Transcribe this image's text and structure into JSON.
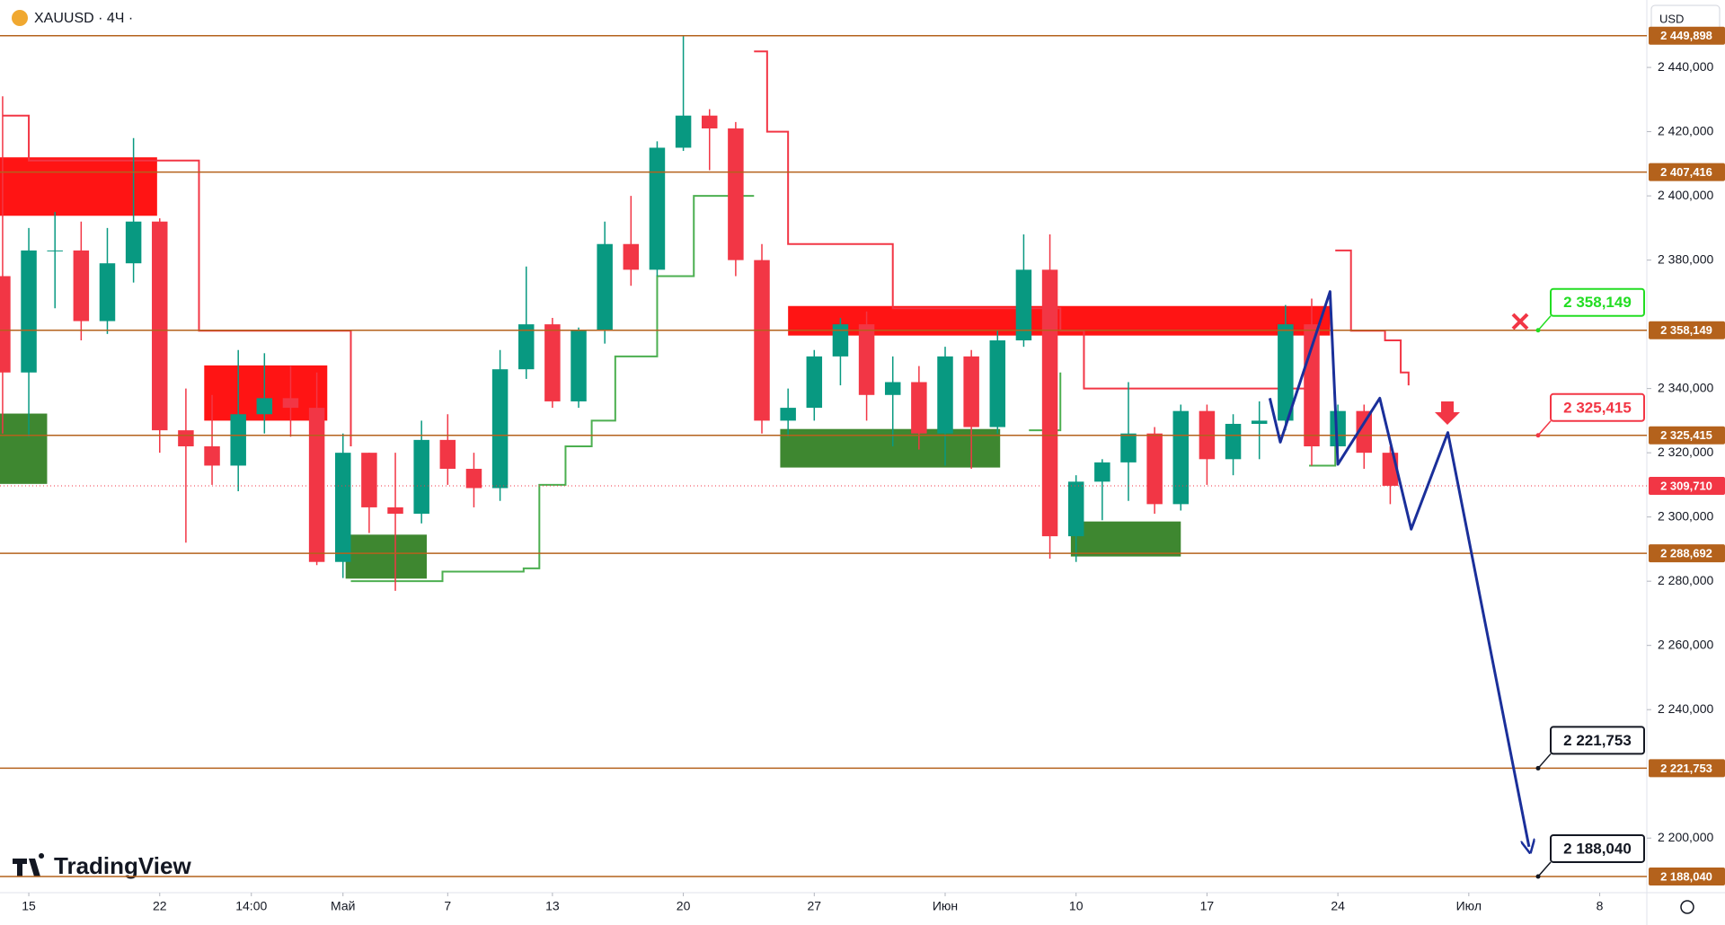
{
  "header": {
    "symbol": "XAUUSD · 4Ч ·",
    "currency": "USD",
    "brand": "TradingView"
  },
  "chart_data": {
    "type": "candlestick",
    "xlim": [
      -1.1,
      61.8
    ],
    "ylim": [
      2183,
      2461
    ],
    "xticks": [
      {
        "value": 0,
        "label": "15"
      },
      {
        "value": 5,
        "label": "22"
      },
      {
        "value": 8.5,
        "label": "14:00"
      },
      {
        "value": 12,
        "label": "Май"
      },
      {
        "value": 16,
        "label": "7"
      },
      {
        "value": 20,
        "label": "13"
      },
      {
        "value": 25,
        "label": "20"
      },
      {
        "value": 30,
        "label": "27"
      },
      {
        "value": 35,
        "label": "Июн"
      },
      {
        "value": 40,
        "label": "10"
      },
      {
        "value": 45,
        "label": "17"
      },
      {
        "value": 50,
        "label": "24"
      },
      {
        "value": 55,
        "label": "Июл"
      },
      {
        "value": 60,
        "label": "8"
      }
    ],
    "yticks": [
      {
        "value": 2200,
        "label": "2 200,000"
      },
      {
        "value": 2240,
        "label": "2 240,000"
      },
      {
        "value": 2260,
        "label": "2 260,000"
      },
      {
        "value": 2280,
        "label": "2 280,000"
      },
      {
        "value": 2300,
        "label": "2 300,000"
      },
      {
        "value": 2320,
        "label": "2 320,000"
      },
      {
        "value": 2340,
        "label": "2 340,000"
      },
      {
        "value": 2380,
        "label": "2 380,000"
      },
      {
        "value": 2400,
        "label": "2 400,000"
      },
      {
        "value": 2420,
        "label": "2 420,000"
      },
      {
        "value": 2440,
        "label": "2 440,000"
      }
    ],
    "up_color": "#089981",
    "down_color": "#f23645",
    "candles": {
      "x": [
        -1,
        0,
        1,
        2,
        3,
        4,
        5,
        6,
        7,
        8,
        9,
        10,
        11,
        12,
        13,
        14,
        15,
        16,
        17,
        18,
        19,
        20,
        21,
        22,
        23,
        24,
        25,
        26,
        27,
        28,
        29,
        30,
        31,
        32,
        33,
        34,
        35,
        36,
        37,
        38,
        39,
        40,
        41,
        42,
        43,
        44,
        45,
        46,
        47,
        48,
        49,
        50,
        51,
        52
      ],
      "open": [
        2375,
        2345,
        2383,
        2383,
        2361,
        2379,
        2392,
        2327,
        2322,
        2316,
        2332,
        2337,
        2334,
        2286,
        2320,
        2303,
        2301,
        2324,
        2315,
        2309,
        2346,
        2360,
        2336,
        2358,
        2385,
        2377,
        2415,
        2425,
        2421,
        2380,
        2330,
        2334,
        2350,
        2360,
        2338,
        2342,
        2326,
        2350,
        2328,
        2355,
        2377,
        2294,
        2311,
        2317,
        2326,
        2304,
        2333,
        2318,
        2329,
        2330,
        2360,
        2322,
        2333,
        2320
      ],
      "high": [
        2431,
        2390,
        2395,
        2392,
        2390,
        2418,
        2393,
        2340,
        2338,
        2352,
        2351,
        2347,
        2345,
        2326,
        2320,
        2320,
        2330,
        2332,
        2320,
        2352,
        2378,
        2362,
        2359,
        2392,
        2400,
        2417,
        2450,
        2427,
        2423,
        2385,
        2340,
        2352,
        2362,
        2364,
        2350,
        2347,
        2353,
        2352,
        2358,
        2388,
        2388,
        2313,
        2318,
        2342,
        2328,
        2335,
        2335,
        2332,
        2336,
        2366,
        2368,
        2335,
        2335,
        2322
      ],
      "low": [
        2326,
        2325,
        2365,
        2355,
        2357,
        2373,
        2320,
        2292,
        2310,
        2308,
        2326,
        2325,
        2285,
        2281,
        2295,
        2277,
        2298,
        2310,
        2303,
        2305,
        2343,
        2334,
        2334,
        2354,
        2372,
        2375,
        2414,
        2408,
        2375,
        2326,
        2325,
        2330,
        2341,
        2330,
        2322,
        2321,
        2316,
        2315,
        2326,
        2353,
        2287,
        2286,
        2299,
        2305,
        2301,
        2302,
        2310,
        2313,
        2318,
        2327,
        2316,
        2320,
        2315,
        2304
      ],
      "close": [
        2345,
        2383,
        2383,
        2361,
        2379,
        2392,
        2327,
        2322,
        2316,
        2332,
        2337,
        2334,
        2286,
        2320,
        2303,
        2301,
        2324,
        2315,
        2309,
        2346,
        2360,
        2336,
        2358,
        2385,
        2377,
        2415,
        2425,
        2421,
        2380,
        2330,
        2334,
        2350,
        2360,
        2338,
        2342,
        2326,
        2350,
        2328,
        2355,
        2377,
        2294,
        2311,
        2317,
        2326,
        2304,
        2333,
        2318,
        2329,
        2330,
        2360,
        2322,
        2333,
        2320,
        2309.71
      ]
    },
    "trail_lines": [
      {
        "color": "#f23645",
        "x": [
          -1,
          -0.3,
          0,
          5.4,
          6.5,
          11.4,
          12.3,
          null,
          27.7,
          28.2,
          29,
          33,
          39.4,
          40.3,
          48.9,
          null,
          49.9,
          50.5,
          51.8,
          52.4,
          52.7
        ],
        "values": [
          2425,
          2425,
          2411,
          2411,
          2358,
          2358,
          2322,
          null,
          2445,
          2420,
          2385,
          2365,
          2358,
          2340,
          2340,
          null,
          2383,
          2358,
          2355,
          2345,
          2341
        ]
      },
      {
        "color": "#4caf50",
        "x": [
          12.3,
          15.8,
          18.9,
          19.5,
          20.5,
          21.5,
          22.4,
          24,
          25.4,
          27.7,
          null,
          38.2,
          39.4,
          null,
          48.9,
          49.9
        ],
        "values": [
          2280,
          2283,
          2284,
          2310,
          2322,
          2330,
          2350,
          2375,
          2400,
          2400,
          null,
          2327,
          2345,
          null,
          2316,
          2330
        ]
      }
    ],
    "zones": [
      {
        "color": "#ff0000",
        "x": [
          -1.1,
          4.9
        ],
        "y": [
          2393.8,
          2412
        ]
      },
      {
        "color": "#ff0000",
        "x": [
          6.7,
          11.4
        ],
        "y": [
          2330,
          2347.2
        ]
      },
      {
        "color": "#ff0000",
        "x": [
          29,
          49.7
        ],
        "y": [
          2356.5,
          2365.7
        ]
      },
      {
        "color": "#2e7d1e",
        "x": [
          -1.1,
          0.7
        ],
        "y": [
          2310.3,
          2332.2
        ]
      },
      {
        "color": "#2e7d1e",
        "x": [
          12.1,
          15.2
        ],
        "y": [
          2280.8,
          2294.5
        ]
      },
      {
        "color": "#2e7d1e",
        "x": [
          28.7,
          37.1
        ],
        "y": [
          2315.4,
          2327.4
        ]
      },
      {
        "color": "#2e7d1e",
        "x": [
          39.8,
          44
        ],
        "y": [
          2287.7,
          2298.6
        ]
      }
    ],
    "projection": {
      "color": "#1a2f9a",
      "x": [
        47.4,
        47.8,
        49.7,
        50.0,
        51.6,
        52.8,
        54.2,
        57.3
      ],
      "values": [
        2337,
        2323.3,
        2370.2,
        2316.4,
        2337,
        2296.2,
        2326.3,
        2197.3
      ]
    },
    "level_color": "#b4621c",
    "levels": [
      {
        "value": 2449.898,
        "label": "2 449,898"
      },
      {
        "value": 2407.416,
        "label": "2 407,416"
      },
      {
        "value": 2358.149,
        "label": "2 358,149"
      },
      {
        "value": 2325.415,
        "label": "2 325,415"
      },
      {
        "value": 2288.692,
        "label": "2 288,692"
      },
      {
        "value": 2221.753,
        "label": "2 221,753"
      },
      {
        "value": 2188.04,
        "label": "2 188,040"
      }
    ],
    "current_price": {
      "value": 2309.71,
      "label": "2 309,710",
      "color": "#f23645"
    },
    "callouts": [
      {
        "value": 2358.149,
        "label": "2 358,149",
        "color": "#22dd22"
      },
      {
        "value": 2325.415,
        "label": "2 325,415",
        "color": "#f23645"
      },
      {
        "value": 2221.753,
        "label": "2 221,753",
        "color": "#131722"
      },
      {
        "value": 2188.04,
        "label": "2 188,040",
        "color": "#131722"
      }
    ]
  }
}
